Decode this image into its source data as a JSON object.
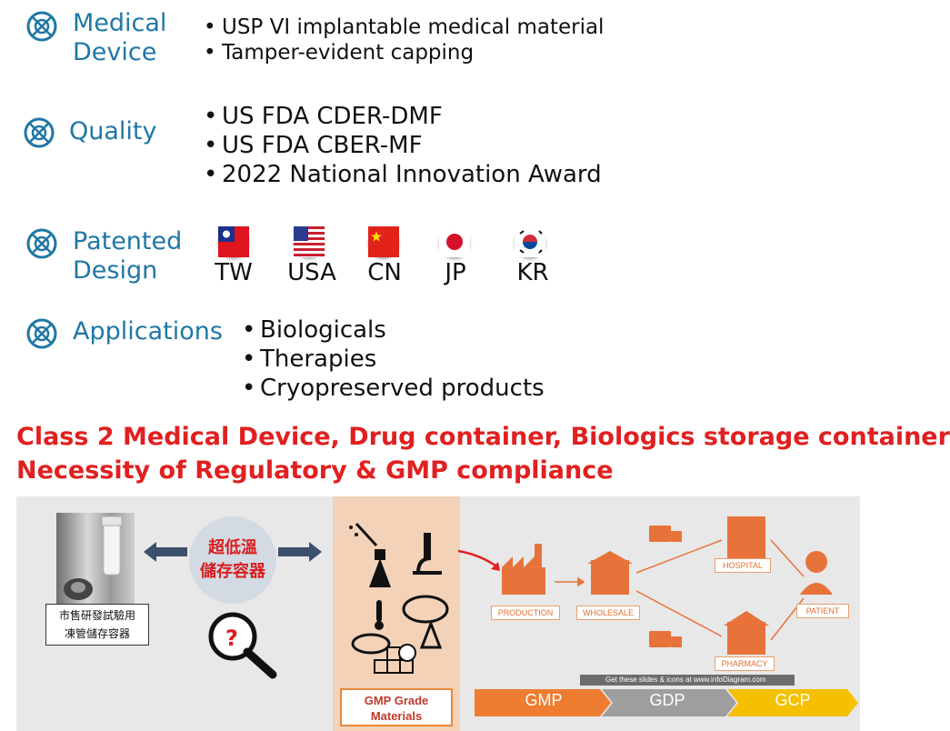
{
  "sections": {
    "medical_device": {
      "title_line1": "Medical",
      "title_line2": "Device",
      "bullets": [
        "USP VI implantable medical material",
        "Tamper-evident capping"
      ]
    },
    "quality": {
      "title": "Quality",
      "bullets": [
        "US FDA CDER-DMF",
        "US FDA CBER-MF",
        "2022 National Innovation Award"
      ]
    },
    "patented_design": {
      "title_line1": "Patented",
      "title_line2": "Design",
      "flags": [
        "TW",
        "USA",
        "CN",
        "JP",
        "KR"
      ]
    },
    "applications": {
      "title": "Applications",
      "bullets": [
        "Biologicals",
        "Therapies",
        "Cryopreserved products"
      ]
    }
  },
  "headline": {
    "line1": "Class 2 Medical Device, Drug container, Biologics storage container",
    "line2": "Necessity of Regulatory & GMP compliance"
  },
  "diagram": {
    "market_label_line1": "市售研發試驗用",
    "market_label_line2": "凍管儲存容器",
    "storage_label_line1": "超低溫",
    "storage_label_line2": "儲存容器",
    "gmp_materials_line1": "GMP Grade",
    "gmp_materials_line2": "Materials",
    "flow": {
      "production": "PRODUCTION",
      "wholesale": "WHOLESALE",
      "hospital": "HOSPITAL",
      "pharmacy": "PHARMACY",
      "patient": "PATIENT"
    },
    "credit": "Get these slides & icons at www.infoDiagram.com",
    "chevrons": [
      "GMP",
      "GDP",
      "GCP"
    ],
    "colors": {
      "gmp": "#ee7d32",
      "gdp": "#9e9e9e",
      "gcp": "#f5c000",
      "accent": "#e8733a"
    }
  },
  "colors": {
    "title_blue": "#1f77a5",
    "headline_red": "#e02020"
  }
}
